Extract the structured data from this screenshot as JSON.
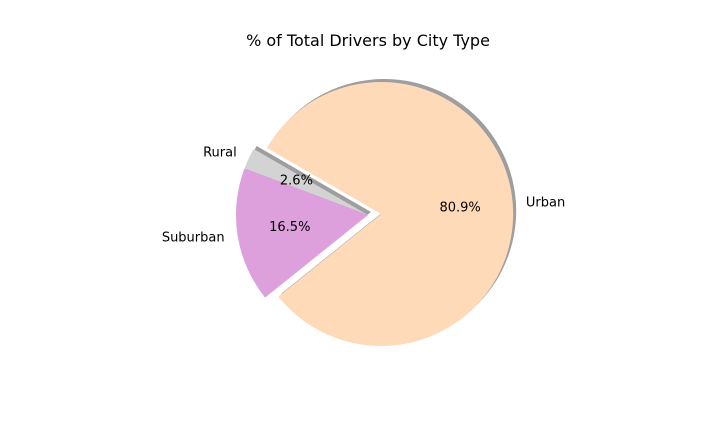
{
  "chart_data": {
    "type": "pie",
    "title": "% of Total Drivers by City Type",
    "categories": [
      "Rural",
      "Suburban",
      "Urban"
    ],
    "values": [
      2.6,
      16.5,
      80.9
    ],
    "percent_labels": [
      "2.6%",
      "16.5%",
      "80.9%"
    ],
    "colors": [
      "#d3d3d3",
      "#dda0dd",
      "#ffdab9"
    ],
    "explode": [
      0,
      0,
      0.1
    ],
    "start_angle_deg": 150,
    "shadow": true,
    "legend": "none"
  }
}
